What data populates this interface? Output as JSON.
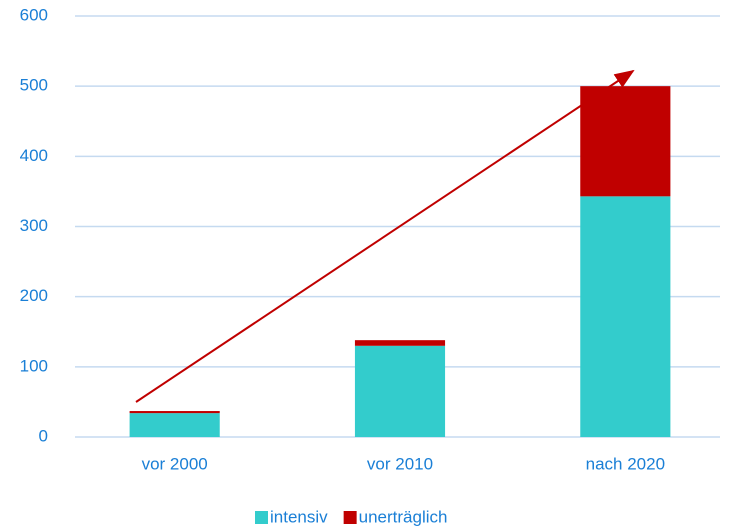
{
  "chart_data": {
    "type": "bar",
    "stacked": true,
    "categories": [
      "vor 2000",
      "vor 2010",
      "nach 2020"
    ],
    "series": [
      {
        "name": "intensiv",
        "color": "#33cccc",
        "values": [
          34,
          130,
          343
        ]
      },
      {
        "name": "unerträglich",
        "color": "#c00000",
        "values": [
          3,
          8,
          157
        ]
      }
    ],
    "ylim": [
      0,
      600
    ],
    "yticks": [
      0,
      100,
      200,
      300,
      400,
      500,
      600
    ],
    "grid": true,
    "legend": "bottom"
  }
}
